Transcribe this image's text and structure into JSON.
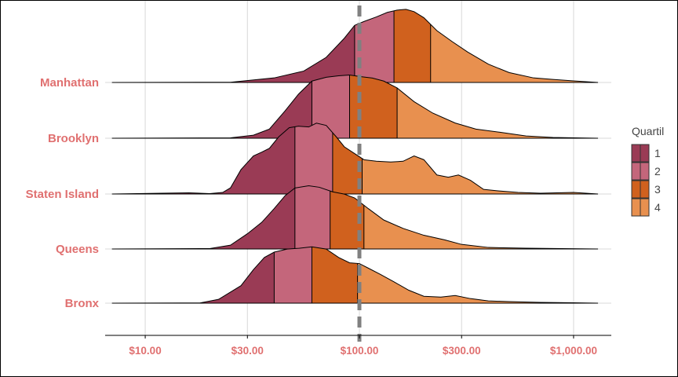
{
  "chart_data": {
    "type": "ridgeline",
    "x_scale": "log10",
    "xlim": [
      6.5,
      1500
    ],
    "x_ticks": [
      10,
      30,
      100,
      300,
      1000
    ],
    "x_tick_labels": [
      "$10.00",
      "$30.00",
      "$100.00",
      "$300.00",
      "$1,000.00"
    ],
    "reference_line": {
      "x": 100,
      "style": "dashed",
      "color": "#808080"
    },
    "categories": [
      "Manhattan",
      "Brooklyn",
      "Staten Island",
      "Queens",
      "Bronx"
    ],
    "legend": {
      "title": "Quartil",
      "position": "right",
      "items": [
        {
          "label": "1",
          "color": "#9A3B55"
        },
        {
          "label": "2",
          "color": "#C4667B"
        },
        {
          "label": "3",
          "color": "#D0611E"
        },
        {
          "label": "4",
          "color": "#E8904F"
        }
      ]
    },
    "label_color": "#E07070",
    "series": [
      {
        "name": "Manhattan",
        "x_range": [
          7,
          1300
        ],
        "quartile_breaks": [
          95,
          145,
          215
        ],
        "density": [
          [
            7,
            0
          ],
          [
            25,
            0.003
          ],
          [
            40,
            0.06
          ],
          [
            55,
            0.15
          ],
          [
            70,
            0.33
          ],
          [
            85,
            0.58
          ],
          [
            95,
            0.75
          ],
          [
            105,
            0.8
          ],
          [
            120,
            0.86
          ],
          [
            135,
            0.92
          ],
          [
            150,
            0.95
          ],
          [
            165,
            0.96
          ],
          [
            180,
            0.93
          ],
          [
            200,
            0.85
          ],
          [
            230,
            0.68
          ],
          [
            270,
            0.54
          ],
          [
            320,
            0.4
          ],
          [
            400,
            0.24
          ],
          [
            500,
            0.13
          ],
          [
            650,
            0.06
          ],
          [
            800,
            0.04
          ],
          [
            1000,
            0.02
          ],
          [
            1300,
            0
          ]
        ]
      },
      {
        "name": "Brooklyn",
        "x_range": [
          7,
          1300
        ],
        "quartile_breaks": [
          60,
          90,
          150
        ],
        "density": [
          [
            7,
            0
          ],
          [
            25,
            0.005
          ],
          [
            32,
            0.04
          ],
          [
            38,
            0.12
          ],
          [
            45,
            0.36
          ],
          [
            52,
            0.58
          ],
          [
            60,
            0.75
          ],
          [
            70,
            0.8
          ],
          [
            80,
            0.82
          ],
          [
            90,
            0.83
          ],
          [
            100,
            0.81
          ],
          [
            115,
            0.79
          ],
          [
            130,
            0.75
          ],
          [
            150,
            0.66
          ],
          [
            180,
            0.48
          ],
          [
            220,
            0.33
          ],
          [
            280,
            0.2
          ],
          [
            350,
            0.12
          ],
          [
            450,
            0.08
          ],
          [
            600,
            0.03
          ],
          [
            800,
            0.01
          ],
          [
            1300,
            0
          ]
        ]
      },
      {
        "name": "Staten Island",
        "x_range": [
          7,
          1300
        ],
        "quartile_breaks": [
          50,
          75,
          103
        ],
        "density": [
          [
            7,
            0
          ],
          [
            12,
            0.01
          ],
          [
            16,
            0.015
          ],
          [
            20,
            0.005
          ],
          [
            23,
            0.02
          ],
          [
            25,
            0.08
          ],
          [
            28,
            0.32
          ],
          [
            32,
            0.5
          ],
          [
            35,
            0.55
          ],
          [
            38,
            0.6
          ],
          [
            42,
            0.75
          ],
          [
            47,
            0.87
          ],
          [
            52,
            0.89
          ],
          [
            58,
            0.88
          ],
          [
            63,
            0.93
          ],
          [
            70,
            0.9
          ],
          [
            78,
            0.75
          ],
          [
            85,
            0.62
          ],
          [
            95,
            0.53
          ],
          [
            105,
            0.45
          ],
          [
            120,
            0.43
          ],
          [
            140,
            0.42
          ],
          [
            160,
            0.43
          ],
          [
            180,
            0.5
          ],
          [
            200,
            0.45
          ],
          [
            230,
            0.25
          ],
          [
            260,
            0.22
          ],
          [
            290,
            0.25
          ],
          [
            330,
            0.18
          ],
          [
            380,
            0.06
          ],
          [
            450,
            0.04
          ],
          [
            550,
            0.02
          ],
          [
            700,
            0.01
          ],
          [
            1000,
            0.02
          ],
          [
            1300,
            0
          ]
        ]
      },
      {
        "name": "Queens",
        "x_range": [
          7,
          1300
        ],
        "quartile_breaks": [
          50,
          73,
          105
        ],
        "density": [
          [
            7,
            0
          ],
          [
            20,
            0.005
          ],
          [
            25,
            0.05
          ],
          [
            30,
            0.2
          ],
          [
            35,
            0.35
          ],
          [
            40,
            0.53
          ],
          [
            45,
            0.7
          ],
          [
            50,
            0.8
          ],
          [
            58,
            0.83
          ],
          [
            65,
            0.81
          ],
          [
            75,
            0.75
          ],
          [
            85,
            0.72
          ],
          [
            95,
            0.67
          ],
          [
            110,
            0.53
          ],
          [
            130,
            0.38
          ],
          [
            160,
            0.27
          ],
          [
            200,
            0.18
          ],
          [
            250,
            0.12
          ],
          [
            300,
            0.06
          ],
          [
            400,
            0.02
          ],
          [
            600,
            0.01
          ],
          [
            1300,
            0
          ]
        ]
      },
      {
        "name": "Bronx",
        "x_range": [
          7,
          1300
        ],
        "quartile_breaks": [
          40,
          60,
          98
        ],
        "density": [
          [
            7,
            0
          ],
          [
            15,
            0.002
          ],
          [
            18,
            0.003
          ],
          [
            22,
            0.05
          ],
          [
            28,
            0.23
          ],
          [
            32,
            0.44
          ],
          [
            36,
            0.6
          ],
          [
            40,
            0.67
          ],
          [
            46,
            0.71
          ],
          [
            52,
            0.72
          ],
          [
            60,
            0.74
          ],
          [
            70,
            0.71
          ],
          [
            80,
            0.6
          ],
          [
            90,
            0.53
          ],
          [
            100,
            0.52
          ],
          [
            110,
            0.46
          ],
          [
            125,
            0.38
          ],
          [
            145,
            0.28
          ],
          [
            170,
            0.17
          ],
          [
            200,
            0.09
          ],
          [
            240,
            0.08
          ],
          [
            280,
            0.1
          ],
          [
            330,
            0.06
          ],
          [
            400,
            0.03
          ],
          [
            500,
            0.02
          ],
          [
            700,
            0.01
          ],
          [
            1000,
            0.005
          ],
          [
            1300,
            0
          ]
        ]
      }
    ]
  }
}
